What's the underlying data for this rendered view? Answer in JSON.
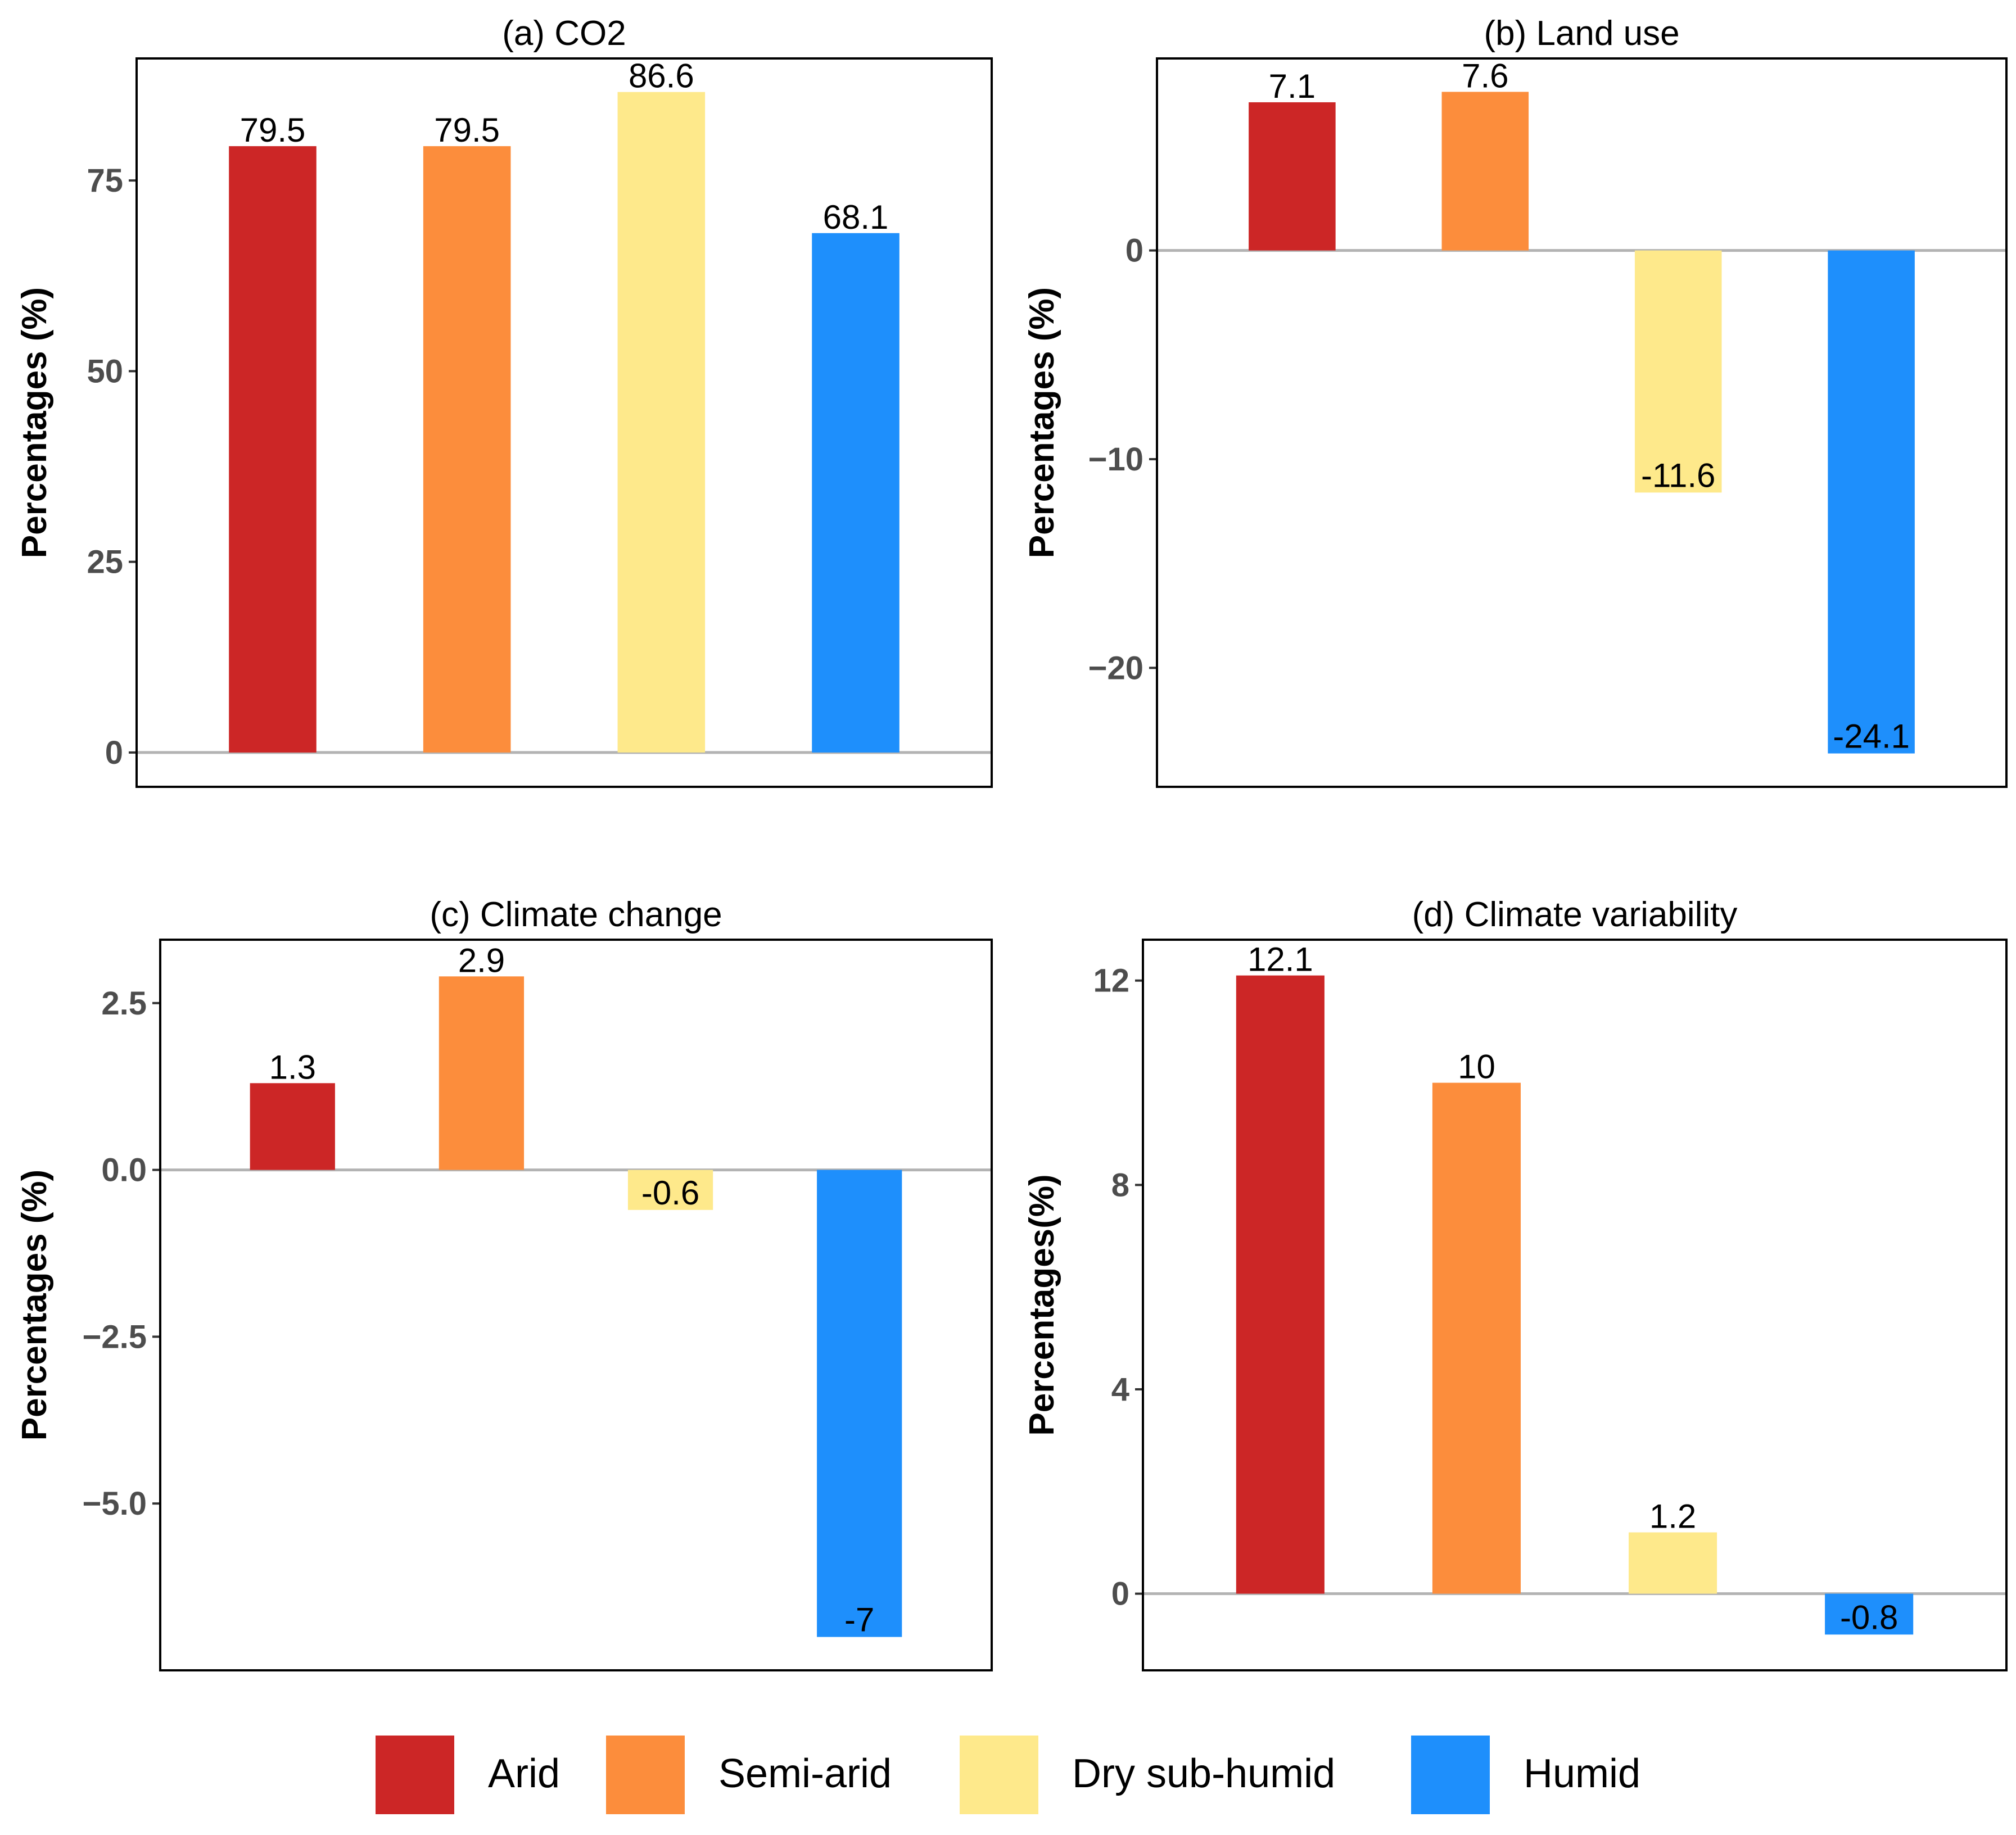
{
  "colors": {
    "arid": "#cc2626",
    "semi_arid": "#fc8d3c",
    "dry_sub_humid": "#fee98b",
    "humid": "#1e8ffc"
  },
  "legend": [
    {
      "label": "Arid",
      "color": "#cc2626"
    },
    {
      "label": "Semi-arid",
      "color": "#fc8d3c"
    },
    {
      "label": "Dry sub-humid",
      "color": "#fee98b"
    },
    {
      "label": "Humid",
      "color": "#1e8ffc"
    }
  ],
  "chart_data": [
    {
      "type": "bar",
      "title": "(a) CO2",
      "ylabel": "Percentages (%)",
      "categories": [
        "Arid",
        "Semi-arid",
        "Dry sub-humid",
        "Humid"
      ],
      "values": [
        79.5,
        79.5,
        86.6,
        68.1
      ],
      "value_labels": [
        "79.5",
        "79.5",
        "86.6",
        "68.1"
      ],
      "ylim": [
        -4.5,
        91
      ],
      "yticks": [
        0,
        25,
        50,
        75
      ],
      "ytick_labels": [
        "0",
        "25",
        "50",
        "75"
      ]
    },
    {
      "type": "bar",
      "title": "(b) Land use",
      "ylabel": "Percentages (%)",
      "categories": [
        "Arid",
        "Semi-arid",
        "Dry sub-humid",
        "Humid"
      ],
      "values": [
        7.1,
        7.6,
        -11.6,
        -24.1
      ],
      "value_labels": [
        "7.1",
        "7.6",
        "-11.6",
        "-24.1"
      ],
      "ylim": [
        -25.7,
        9.2
      ],
      "yticks": [
        -20,
        -10,
        0
      ],
      "ytick_labels": [
        "−20",
        "−10",
        "0"
      ]
    },
    {
      "type": "bar",
      "title": "(c) Climate change",
      "ylabel": "Percentages (%)",
      "categories": [
        "Arid",
        "Semi-arid",
        "Dry sub-humid",
        "Humid"
      ],
      "values": [
        1.3,
        2.9,
        -0.6,
        -7
      ],
      "value_labels": [
        "1.3",
        "2.9",
        "-0.6",
        "-7"
      ],
      "ylim": [
        -7.5,
        3.45
      ],
      "yticks": [
        -5.0,
        -2.5,
        0.0,
        2.5
      ],
      "ytick_labels": [
        "−5.0",
        "−2.5",
        "0.0",
        "2.5"
      ]
    },
    {
      "type": "bar",
      "title": "(d) Climate variability",
      "ylabel": "Percentages(%)",
      "categories": [
        "Arid",
        "Semi-arid",
        "Dry sub-humid",
        "Humid"
      ],
      "values": [
        12.1,
        10,
        1.2,
        -0.8
      ],
      "value_labels": [
        "12.1",
        "10",
        "1.2",
        "-0.8"
      ],
      "ylim": [
        -1.5,
        12.8
      ],
      "yticks": [
        0,
        4,
        8,
        12
      ],
      "ytick_labels": [
        "0",
        "4",
        "8",
        "12"
      ]
    }
  ]
}
